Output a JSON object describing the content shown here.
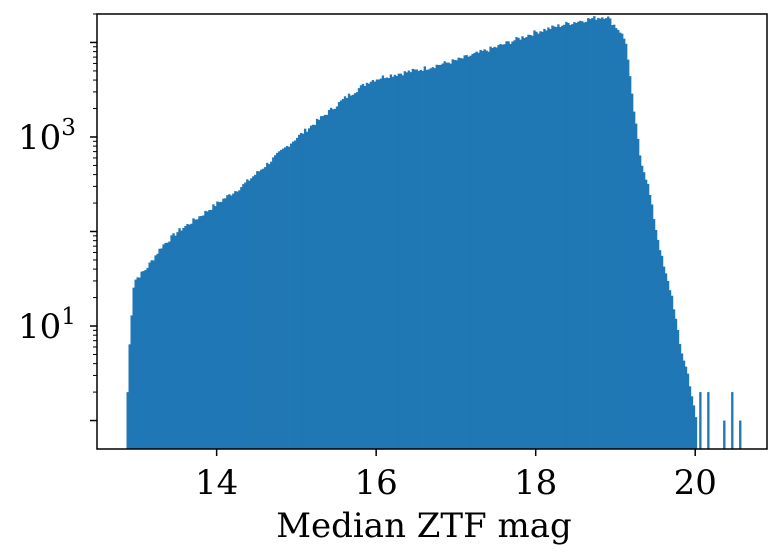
{
  "chart_data": {
    "type": "bar",
    "title": "",
    "xlabel": "Median ZTF mag",
    "ylabel": "",
    "xlim": [
      12.5,
      20.9
    ],
    "ylim": [
      0.5,
      20000
    ],
    "yscale": "log",
    "grid": false,
    "bar_color": "#1f77b4",
    "bin_width": 0.025,
    "x_ticks": [
      {
        "value": 14,
        "label": "14"
      },
      {
        "value": 16,
        "label": "16"
      },
      {
        "value": 18,
        "label": "18"
      },
      {
        "value": 20,
        "label": "20"
      }
    ],
    "y_ticks": [
      {
        "value": 10,
        "base": "10",
        "exp": "1"
      },
      {
        "value": 1000,
        "base": "10",
        "exp": "3"
      }
    ],
    "histogram_anchors": [
      [
        12.87,
        2
      ],
      [
        12.9,
        8
      ],
      [
        12.95,
        30
      ],
      [
        13.1,
        40
      ],
      [
        13.3,
        70
      ],
      [
        13.5,
        100
      ],
      [
        13.8,
        150
      ],
      [
        14.0,
        200
      ],
      [
        14.3,
        300
      ],
      [
        14.6,
        500
      ],
      [
        15.0,
        1000
      ],
      [
        15.3,
        1600
      ],
      [
        15.6,
        2600
      ],
      [
        15.9,
        3900
      ],
      [
        16.1,
        4400
      ],
      [
        16.5,
        5100
      ],
      [
        17.0,
        6500
      ],
      [
        17.5,
        9000
      ],
      [
        18.0,
        13000
      ],
      [
        18.4,
        16000
      ],
      [
        18.7,
        18000
      ],
      [
        18.88,
        19000
      ],
      [
        18.95,
        16000
      ],
      [
        19.05,
        13000
      ],
      [
        19.12,
        10000
      ],
      [
        19.2,
        2500
      ],
      [
        19.3,
        600
      ],
      [
        19.4,
        300
      ],
      [
        19.5,
        100
      ],
      [
        19.6,
        40
      ],
      [
        19.7,
        20
      ],
      [
        19.8,
        6
      ],
      [
        19.9,
        3
      ],
      [
        20.0,
        1
      ]
    ],
    "outlier_bins": [
      {
        "x": 20.05,
        "y": 2
      },
      {
        "x": 20.15,
        "y": 2
      },
      {
        "x": 20.35,
        "y": 1
      },
      {
        "x": 20.45,
        "y": 2
      },
      {
        "x": 20.55,
        "y": 1
      }
    ]
  }
}
